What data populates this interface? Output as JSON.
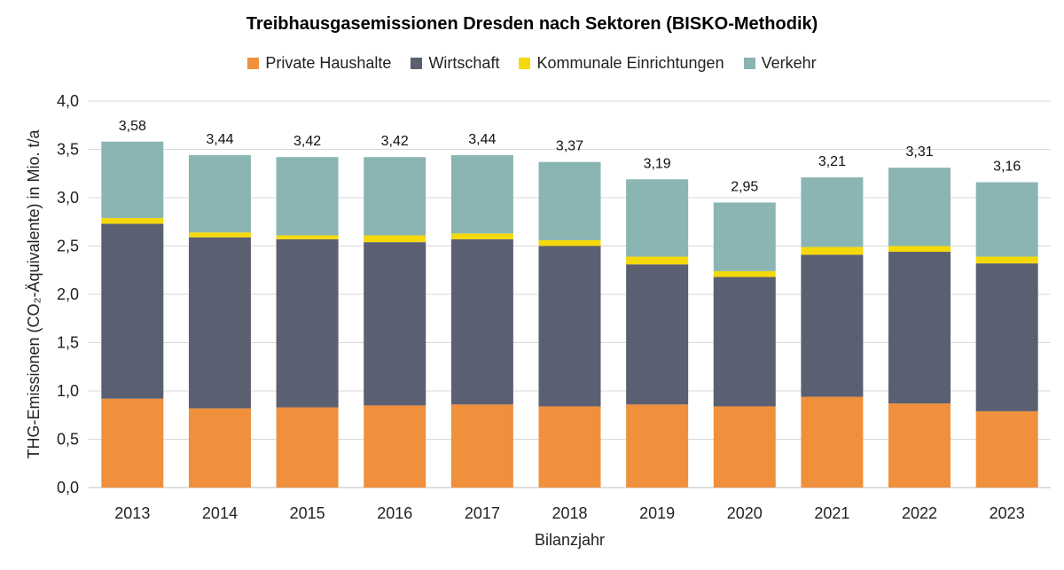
{
  "chart_data": {
    "type": "bar",
    "stacked": true,
    "title": "Treibhausgasemissionen Dresden nach Sektoren (BISKO-Methodik)",
    "xlabel": "Bilanzjahr",
    "ylabel": "THG-Emissionen (CO₂-Äquivalente) in Mio. t/a",
    "ylim": [
      0,
      4.0
    ],
    "yticks": [
      "0,0",
      "0,5",
      "1,0",
      "1,5",
      "2,0",
      "2,5",
      "3,0",
      "3,5",
      "4,0"
    ],
    "grid": true,
    "legend_position": "top",
    "categories": [
      "2013",
      "2014",
      "2015",
      "2016",
      "2017",
      "2018",
      "2019",
      "2020",
      "2021",
      "2022",
      "2023"
    ],
    "series": [
      {
        "name": "Private Haushalte",
        "color": "#F0903C",
        "values": [
          0.92,
          0.82,
          0.83,
          0.85,
          0.86,
          0.84,
          0.86,
          0.84,
          0.94,
          0.87,
          0.79
        ]
      },
      {
        "name": "Wirtschaft",
        "color": "#5A5F72",
        "values": [
          1.81,
          1.77,
          1.74,
          1.69,
          1.71,
          1.66,
          1.45,
          1.34,
          1.47,
          1.57,
          1.53
        ]
      },
      {
        "name": "Kommunale Einrichtungen",
        "color": "#F5D90A",
        "values": [
          0.06,
          0.05,
          0.04,
          0.07,
          0.06,
          0.06,
          0.08,
          0.06,
          0.08,
          0.06,
          0.07
        ]
      },
      {
        "name": "Verkehr",
        "color": "#8AB5B2",
        "values": [
          0.79,
          0.8,
          0.81,
          0.81,
          0.81,
          0.81,
          0.8,
          0.71,
          0.72,
          0.81,
          0.77
        ]
      }
    ],
    "totals": [
      "3,58",
      "3,44",
      "3,42",
      "3,42",
      "3,44",
      "3,37",
      "3,19",
      "2,95",
      "3,21",
      "3,31",
      "3,16"
    ]
  }
}
